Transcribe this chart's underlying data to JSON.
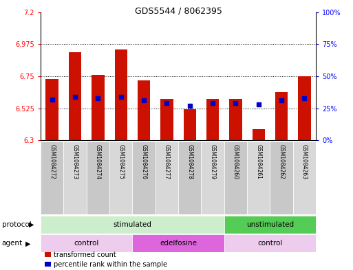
{
  "title": "GDS5544 / 8062395",
  "samples": [
    "GSM1084272",
    "GSM1084273",
    "GSM1084274",
    "GSM1084275",
    "GSM1084276",
    "GSM1084277",
    "GSM1084278",
    "GSM1084279",
    "GSM1084260",
    "GSM1084261",
    "GSM1084262",
    "GSM1084263"
  ],
  "bar_tops": [
    6.73,
    6.92,
    6.76,
    6.94,
    6.72,
    6.59,
    6.52,
    6.59,
    6.59,
    6.38,
    6.64,
    6.75
  ],
  "bar_bottom": 6.3,
  "percentile_vals": [
    32,
    34,
    33,
    34,
    31,
    29,
    27,
    29,
    29,
    28,
    31,
    33
  ],
  "ylim_left": [
    6.3,
    7.2
  ],
  "ylim_right": [
    0,
    100
  ],
  "yticks_left": [
    6.3,
    6.525,
    6.75,
    6.975,
    7.2
  ],
  "yticks_right": [
    0,
    25,
    50,
    75,
    100
  ],
  "bar_color": "#cc1100",
  "dot_color": "#0000cc",
  "sample_bg_even": "#c8c8c8",
  "sample_bg_odd": "#d8d8d8",
  "protocol_groups": [
    {
      "label": "stimulated",
      "start": 0,
      "end": 8,
      "color": "#cceecc"
    },
    {
      "label": "unstimulated",
      "start": 8,
      "end": 12,
      "color": "#55cc55"
    }
  ],
  "agent_groups": [
    {
      "label": "control",
      "start": 0,
      "end": 4,
      "color": "#eeccee"
    },
    {
      "label": "edelfosine",
      "start": 4,
      "end": 8,
      "color": "#dd66dd"
    },
    {
      "label": "control",
      "start": 8,
      "end": 12,
      "color": "#eeccee"
    }
  ],
  "legend_items": [
    {
      "label": "transformed count",
      "color": "#cc1100"
    },
    {
      "label": "percentile rank within the sample",
      "color": "#0000cc"
    }
  ]
}
